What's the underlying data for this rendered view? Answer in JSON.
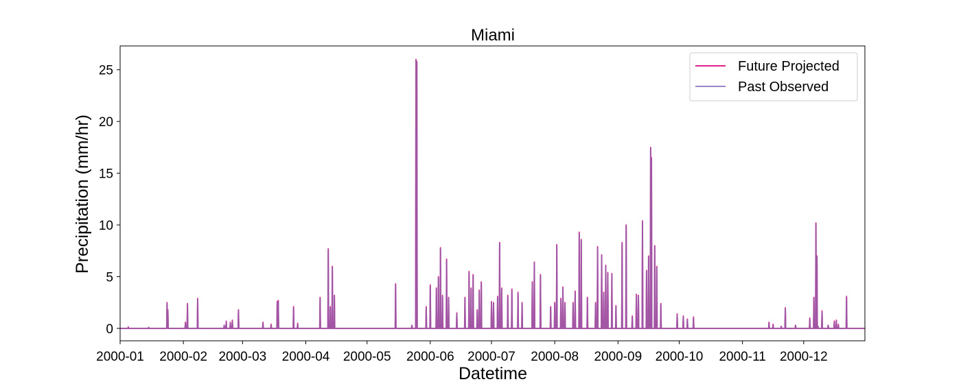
{
  "chart_data": {
    "type": "line",
    "title": "Miami",
    "xlabel": "Datetime",
    "ylabel": "Precipitation (mm/hr)",
    "x_unit": "day_of_year_2000",
    "xlim": [
      1,
      366
    ],
    "ylim": [
      -1.2,
      27.3
    ],
    "yticks": [
      0,
      5,
      10,
      15,
      20,
      25
    ],
    "ytick_labels": [
      "0",
      "5",
      "10",
      "15",
      "20",
      "25"
    ],
    "xticks": [
      1,
      32,
      61,
      92,
      122,
      153,
      183,
      214,
      245,
      275,
      306,
      336
    ],
    "xtick_labels": [
      "2000-01",
      "2000-02",
      "2000-03",
      "2000-04",
      "2000-05",
      "2000-06",
      "2000-07",
      "2000-08",
      "2000-09",
      "2000-10",
      "2000-11",
      "2000-12"
    ],
    "legend": {
      "position": "top-right",
      "entries": [
        "Future Projected",
        "Past Observed"
      ]
    },
    "colors": {
      "future": "#e0218a",
      "past": "#9a86c4",
      "overlap": "#9b59a6"
    },
    "series": [
      {
        "name": "Future Projected",
        "peaks": [
          [
            5,
            0.15
          ],
          [
            15,
            0.1
          ],
          [
            24,
            2.5
          ],
          [
            24.4,
            1.8
          ],
          [
            33,
            0.6
          ],
          [
            34,
            2.4
          ],
          [
            39,
            2.9
          ],
          [
            52,
            0.3
          ],
          [
            53,
            0.7
          ],
          [
            55,
            0.6
          ],
          [
            56,
            0.8
          ],
          [
            59,
            1.8
          ],
          [
            71,
            0.6
          ],
          [
            75,
            0.4
          ],
          [
            78,
            2.6
          ],
          [
            78.5,
            2.7
          ],
          [
            86,
            2.1
          ],
          [
            88,
            0.5
          ],
          [
            99,
            3.0
          ],
          [
            103,
            7.7
          ],
          [
            104,
            2.1
          ],
          [
            105,
            6.0
          ],
          [
            106,
            3.2
          ],
          [
            136,
            4.3
          ],
          [
            144,
            0.3
          ],
          [
            146,
            26.0
          ],
          [
            146.4,
            25.8
          ],
          [
            151,
            2.1
          ],
          [
            153,
            4.2
          ],
          [
            156,
            3.9
          ],
          [
            157,
            5.0
          ],
          [
            158,
            7.8
          ],
          [
            159,
            3.2
          ],
          [
            161,
            6.7
          ],
          [
            162,
            3.0
          ],
          [
            166,
            1.5
          ],
          [
            170,
            3.0
          ],
          [
            172,
            5.5
          ],
          [
            173,
            3.9
          ],
          [
            174,
            5.2
          ],
          [
            176,
            1.8
          ],
          [
            177,
            3.7
          ],
          [
            178,
            4.5
          ],
          [
            183,
            2.6
          ],
          [
            184,
            2.5
          ],
          [
            186,
            3.1
          ],
          [
            187,
            8.3
          ],
          [
            188,
            3.9
          ],
          [
            191,
            3.2
          ],
          [
            193,
            3.8
          ],
          [
            196,
            3.5
          ],
          [
            198,
            2.5
          ],
          [
            203,
            4.5
          ],
          [
            204,
            6.4
          ],
          [
            207,
            5.2
          ],
          [
            212,
            2.1
          ],
          [
            214,
            2.5
          ],
          [
            215,
            8.1
          ],
          [
            217,
            2.9
          ],
          [
            218,
            4.0
          ],
          [
            219,
            2.5
          ],
          [
            223,
            2.5
          ],
          [
            224,
            3.6
          ],
          [
            226,
            9.3
          ],
          [
            227,
            8.6
          ],
          [
            230,
            3.0
          ],
          [
            234,
            2.5
          ],
          [
            235,
            7.9
          ],
          [
            237,
            7.1
          ],
          [
            238,
            3.5
          ],
          [
            239,
            6.1
          ],
          [
            240,
            5.4
          ],
          [
            242,
            5.3
          ],
          [
            244,
            2.2
          ],
          [
            247,
            8.3
          ],
          [
            249,
            10.0
          ],
          [
            252,
            1.2
          ],
          [
            254,
            3.3
          ],
          [
            255,
            3.2
          ],
          [
            257,
            10.4
          ],
          [
            259,
            5.6
          ],
          [
            260,
            7.0
          ],
          [
            261,
            17.5
          ],
          [
            261.4,
            16.5
          ],
          [
            263,
            8.0
          ],
          [
            264,
            6.0
          ],
          [
            266,
            2.4
          ],
          [
            274,
            1.4
          ],
          [
            277,
            1.2
          ],
          [
            279,
            0.9
          ],
          [
            282,
            1.1
          ],
          [
            319,
            0.6
          ],
          [
            321,
            0.4
          ],
          [
            325,
            0.2
          ],
          [
            327,
            2.0
          ],
          [
            332,
            0.3
          ],
          [
            339,
            1.0
          ],
          [
            341,
            3.0
          ],
          [
            342,
            10.2
          ],
          [
            342.5,
            7.0
          ],
          [
            343,
            0.2
          ],
          [
            345,
            1.7
          ],
          [
            348,
            0.3
          ],
          [
            351,
            0.7
          ],
          [
            352,
            0.8
          ],
          [
            353,
            0.4
          ],
          [
            357,
            3.1
          ]
        ]
      },
      {
        "name": "Past Observed",
        "peaks": [
          [
            5,
            0.1
          ],
          [
            15,
            0.1
          ],
          [
            24,
            2.4
          ],
          [
            24.4,
            1.7
          ],
          [
            33,
            0.5
          ],
          [
            34,
            2.3
          ],
          [
            39,
            2.8
          ],
          [
            52,
            0.3
          ],
          [
            53,
            0.6
          ],
          [
            55,
            0.5
          ],
          [
            56,
            0.7
          ],
          [
            59,
            1.7
          ],
          [
            71,
            0.5
          ],
          [
            75,
            0.3
          ],
          [
            78,
            2.5
          ],
          [
            78.5,
            2.6
          ],
          [
            86,
            2.0
          ],
          [
            88,
            0.4
          ],
          [
            99,
            2.9
          ],
          [
            103,
            7.6
          ],
          [
            104,
            2.0
          ],
          [
            105,
            5.9
          ],
          [
            106,
            3.1
          ],
          [
            136,
            4.2
          ],
          [
            144,
            0.3
          ],
          [
            146,
            25.9
          ],
          [
            146.4,
            25.7
          ],
          [
            151,
            2.0
          ],
          [
            153,
            4.1
          ],
          [
            156,
            3.8
          ],
          [
            157,
            4.9
          ],
          [
            158,
            7.7
          ],
          [
            159,
            3.1
          ],
          [
            161,
            6.6
          ],
          [
            162,
            2.9
          ],
          [
            166,
            1.4
          ],
          [
            170,
            2.9
          ],
          [
            172,
            5.4
          ],
          [
            173,
            3.8
          ],
          [
            174,
            5.1
          ],
          [
            176,
            1.7
          ],
          [
            177,
            3.6
          ],
          [
            178,
            4.4
          ],
          [
            183,
            2.5
          ],
          [
            184,
            2.4
          ],
          [
            186,
            3.0
          ],
          [
            187,
            8.2
          ],
          [
            188,
            3.8
          ],
          [
            191,
            3.1
          ],
          [
            193,
            3.7
          ],
          [
            196,
            3.4
          ],
          [
            198,
            2.4
          ],
          [
            203,
            4.4
          ],
          [
            204,
            6.3
          ],
          [
            207,
            5.1
          ],
          [
            212,
            2.0
          ],
          [
            214,
            2.4
          ],
          [
            215,
            8.0
          ],
          [
            217,
            2.8
          ],
          [
            218,
            3.9
          ],
          [
            219,
            2.4
          ],
          [
            223,
            2.4
          ],
          [
            224,
            3.5
          ],
          [
            226,
            9.2
          ],
          [
            227,
            8.5
          ],
          [
            230,
            2.9
          ],
          [
            234,
            2.4
          ],
          [
            235,
            7.8
          ],
          [
            237,
            7.0
          ],
          [
            238,
            3.4
          ],
          [
            239,
            6.0
          ],
          [
            240,
            5.3
          ],
          [
            242,
            5.2
          ],
          [
            244,
            2.1
          ],
          [
            247,
            8.2
          ],
          [
            249,
            9.9
          ],
          [
            252,
            1.1
          ],
          [
            254,
            3.2
          ],
          [
            255,
            3.1
          ],
          [
            257,
            10.3
          ],
          [
            259,
            5.5
          ],
          [
            260,
            6.9
          ],
          [
            261,
            17.4
          ],
          [
            261.4,
            16.4
          ],
          [
            263,
            7.9
          ],
          [
            264,
            5.9
          ],
          [
            266,
            2.3
          ],
          [
            274,
            1.3
          ],
          [
            277,
            1.1
          ],
          [
            279,
            0.8
          ],
          [
            282,
            1.0
          ],
          [
            319,
            0.5
          ],
          [
            321,
            0.3
          ],
          [
            325,
            0.2
          ],
          [
            327,
            1.9
          ],
          [
            332,
            0.3
          ],
          [
            339,
            0.9
          ],
          [
            341,
            2.9
          ],
          [
            342,
            10.1
          ],
          [
            342.5,
            6.9
          ],
          [
            343,
            0.2
          ],
          [
            345,
            1.6
          ],
          [
            348,
            0.3
          ],
          [
            351,
            0.6
          ],
          [
            352,
            0.7
          ],
          [
            353,
            0.3
          ],
          [
            357,
            3.0
          ]
        ]
      }
    ]
  }
}
